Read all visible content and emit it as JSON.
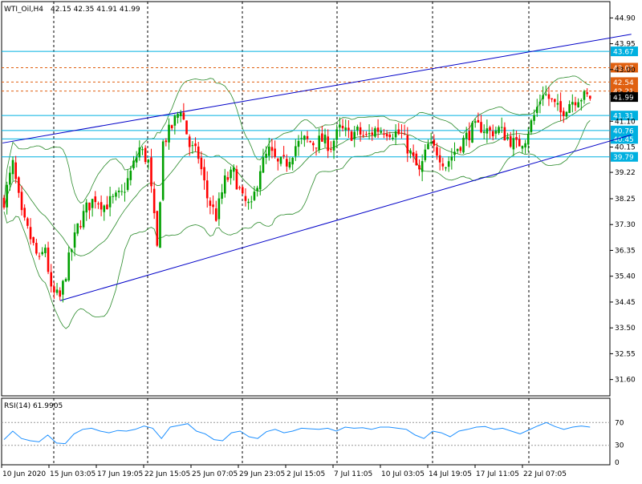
{
  "symbol_header": "WTI_Oil,H4",
  "ohlc_readout": "42.15 42.35 41.91 41.99",
  "rsi_header": "RSI(14) 61.9905",
  "colors": {
    "background": "#ffffff",
    "grid": "#000000",
    "bull": "#00a000",
    "bear": "#ff0000",
    "bollinger": "#2a8a2a",
    "channel": "#0000c8",
    "level_blue": "#00b0e0",
    "level_orange": "#e06010",
    "rsi_line": "#1e90ff",
    "price_tag": "#000000"
  },
  "chart_data": [
    {
      "type": "candlestick",
      "title": "WTI_Oil,H4",
      "ylim": [
        31.0,
        45.5
      ],
      "y_ticks": [
        "44.90",
        "43.95",
        "43.00",
        "42.10",
        "41.10",
        "40.15",
        "39.22",
        "38.25",
        "37.30",
        "36.35",
        "35.40",
        "34.45",
        "33.50",
        "32.55",
        "31.60"
      ],
      "x_ticks": [
        "10 Jun 2020",
        "15 Jun 03:05",
        "17 Jun 19:05",
        "22 Jun 15:05",
        "25 Jun 07:05",
        "29 Jun 23:05",
        "2 Jul 15:05",
        "7 Jul 11:05",
        "10 Jul 03:05",
        "14 Jul 19:05",
        "17 Jul 11:05",
        "22 Jul 07:05"
      ],
      "close_path": [
        [
          0,
          38.2
        ],
        [
          3,
          39.5
        ],
        [
          6,
          37.6
        ],
        [
          9,
          36.8
        ],
        [
          12,
          35.9
        ],
        [
          14,
          36.5
        ],
        [
          16,
          34.8
        ],
        [
          19,
          34.6
        ],
        [
          22,
          36.0
        ],
        [
          25,
          37.2
        ],
        [
          28,
          37.9
        ],
        [
          31,
          38.3
        ],
        [
          34,
          38.0
        ],
        [
          37,
          38.2
        ],
        [
          40,
          38.4
        ],
        [
          43,
          39.2
        ],
        [
          46,
          40.1
        ],
        [
          49,
          39.6
        ],
        [
          52,
          36.4
        ],
        [
          54,
          40.3
        ],
        [
          57,
          40.9
        ],
        [
          60,
          41.6
        ],
        [
          63,
          40.2
        ],
        [
          66,
          39.8
        ],
        [
          69,
          38.3
        ],
        [
          72,
          37.6
        ],
        [
          75,
          38.9
        ],
        [
          78,
          39.2
        ],
        [
          81,
          38.2
        ],
        [
          84,
          37.9
        ],
        [
          87,
          39.4
        ],
        [
          90,
          40.0
        ],
        [
          93,
          39.5
        ],
        [
          96,
          39.6
        ],
        [
          99,
          40.2
        ],
        [
          102,
          40.4
        ],
        [
          105,
          40.3
        ],
        [
          108,
          40.4
        ],
        [
          111,
          40.2
        ],
        [
          114,
          40.8
        ],
        [
          117,
          40.6
        ],
        [
          120,
          40.7
        ],
        [
          123,
          40.5
        ],
        [
          126,
          40.8
        ],
        [
          129,
          40.8
        ],
        [
          132,
          40.7
        ],
        [
          135,
          40.6
        ],
        [
          138,
          39.9
        ],
        [
          141,
          39.2
        ],
        [
          144,
          40.2
        ],
        [
          147,
          40.0
        ],
        [
          150,
          39.5
        ],
        [
          153,
          40.0
        ],
        [
          156,
          40.4
        ],
        [
          159,
          40.8
        ],
        [
          162,
          40.9
        ],
        [
          165,
          40.7
        ],
        [
          168,
          40.8
        ],
        [
          171,
          40.5
        ],
        [
          174,
          40.2
        ],
        [
          177,
          40.5
        ],
        [
          180,
          41.3
        ],
        [
          183,
          42.2
        ],
        [
          186,
          41.8
        ],
        [
          189,
          41.4
        ],
        [
          192,
          41.8
        ],
        [
          195,
          42.0
        ],
        [
          198,
          41.99
        ]
      ],
      "levels": [
        {
          "value": "43.67",
          "color": "#00b0e0",
          "style": "solid"
        },
        {
          "value": "43.07",
          "color": "#e06010",
          "style": "dashed"
        },
        {
          "value": "42.54",
          "color": "#e06010",
          "style": "dashed"
        },
        {
          "value": "42.21",
          "color": "#e06010",
          "style": "dashed"
        },
        {
          "value": "41.31",
          "color": "#00b0e0",
          "style": "solid"
        },
        {
          "value": "40.76",
          "color": "#00b0e0",
          "style": "solid"
        },
        {
          "value": "40.45",
          "color": "#00b0e0",
          "style": "solid"
        },
        {
          "value": "39.79",
          "color": "#00b0e0",
          "style": "solid"
        }
      ],
      "current_price": "41.99",
      "trend_channel": {
        "upper": [
          [
            -0.5,
            40.3
          ],
          [
            213,
            44.3
          ]
        ],
        "lower": [
          [
            19,
            34.5
          ],
          [
            213,
            40.6
          ]
        ]
      }
    },
    {
      "type": "line",
      "title": "RSI(14) 61.9905",
      "ylim": [
        0,
        100
      ],
      "y_ticks": [
        "70",
        "30",
        "0"
      ],
      "levels": [
        70,
        30
      ],
      "series": [
        {
          "values": [
            40,
            55,
            42,
            38,
            36,
            48,
            34,
            33,
            50,
            58,
            60,
            55,
            52,
            56,
            55,
            58,
            64,
            60,
            42,
            62,
            65,
            68,
            55,
            50,
            40,
            38,
            52,
            55,
            45,
            42,
            54,
            58,
            52,
            55,
            60,
            59,
            58,
            60,
            55,
            62,
            60,
            61,
            58,
            62,
            62,
            60,
            58,
            48,
            42,
            55,
            52,
            45,
            55,
            58,
            62,
            63,
            58,
            60,
            55,
            50,
            57,
            64,
            70,
            63,
            58,
            62,
            64,
            62
          ]
        }
      ]
    }
  ]
}
